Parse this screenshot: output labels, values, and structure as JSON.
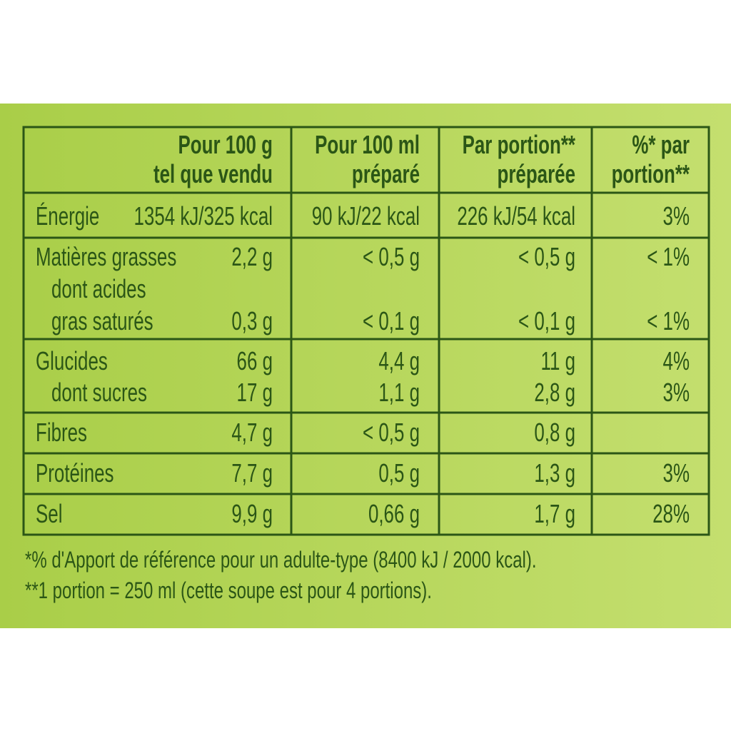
{
  "table": {
    "headers": [
      [
        "Pour 100 g",
        "tel que vendu"
      ],
      [
        "Pour 100 ml",
        "préparé"
      ],
      [
        "Par portion**",
        "préparée"
      ],
      [
        "%* par",
        "portion**"
      ]
    ],
    "rows": [
      {
        "lines": [
          {
            "label": "Énergie",
            "values": [
              "1354 kJ/325 kcal",
              "90 kJ/22 kcal",
              "226 kJ/54 kcal",
              "3%"
            ]
          }
        ]
      },
      {
        "lines": [
          {
            "label": "Matières grasses",
            "values": [
              "2,2 g",
              "< 0,5 g",
              "< 0,5 g",
              "< 1%"
            ]
          },
          {
            "label": "dont acides"
          },
          {
            "label": "gras saturés",
            "values": [
              "0,3 g",
              "< 0,1 g",
              "< 0,1 g",
              "< 1%"
            ]
          }
        ]
      },
      {
        "lines": [
          {
            "label": "Glucides",
            "values": [
              "66 g",
              "4,4 g",
              "11 g",
              "4%"
            ]
          },
          {
            "label": "dont sucres",
            "values": [
              "17 g",
              "1,1 g",
              "2,8 g",
              "3%"
            ]
          }
        ]
      },
      {
        "lines": [
          {
            "label": "Fibres",
            "values": [
              "4,7 g",
              "< 0,5 g",
              "0,8 g",
              null
            ]
          }
        ]
      },
      {
        "lines": [
          {
            "label": "Protéines",
            "values": [
              "7,7 g",
              "0,5 g",
              "1,3 g",
              "3%"
            ]
          }
        ]
      },
      {
        "lines": [
          {
            "label": "Sel",
            "values": [
              "9,9 g",
              "0,66 g",
              "1,7 g",
              "28%"
            ]
          }
        ]
      }
    ]
  },
  "footnotes": [
    "*% d'Apport de référence pour un adulte-type (8400 kJ / 2000 kcal).",
    "**1 portion = 250 ml (cette soupe est pour 4 portions)."
  ]
}
